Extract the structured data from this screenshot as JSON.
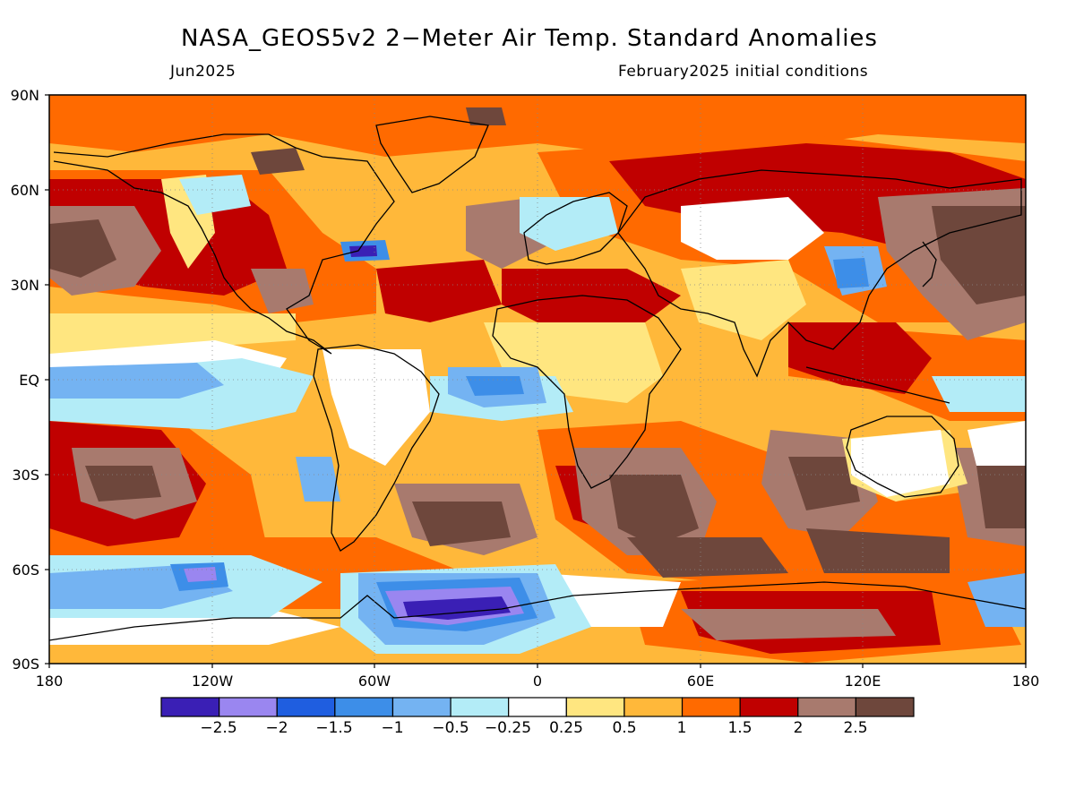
{
  "title": "NASA_GEOS5v2 2−Meter Air Temp. Standard Anomalies",
  "subtitle_left": "Jun2025",
  "subtitle_right": "February2025 initial conditions",
  "y_axis_labels": [
    "90N",
    "60N",
    "30N",
    "EQ",
    "30S",
    "60S",
    "90S"
  ],
  "x_axis_labels": [
    "180",
    "120W",
    "60W",
    "0",
    "60E",
    "120E",
    "180"
  ],
  "colorbar": {
    "colors": [
      "#3a1fb5",
      "#9a86f0",
      "#1f5ee0",
      "#3d8ee8",
      "#74b3f2",
      "#b3ecf7",
      "#ffffff",
      "#ffe680",
      "#ffb83a",
      "#ff6a00",
      "#c00000",
      "#a87a6e",
      "#6e473c"
    ],
    "labels": [
      "−2.5",
      "−2",
      "−1.5",
      "−1",
      "−0.5",
      "−0.25",
      "0.25",
      "0.5",
      "1",
      "1.5",
      "2",
      "2.5"
    ]
  },
  "palette": {
    "base": "#ffb83a",
    "orange": "#ff6a00",
    "red": "#c00000",
    "brown_light": "#a87a6e",
    "brown_dark": "#6e473c",
    "yellow": "#ffe680",
    "white": "#ffffff",
    "cyan": "#b3ecf7",
    "blue_light": "#74b3f2",
    "blue": "#3d8ee8",
    "blue_dark": "#1f5ee0",
    "purple_light": "#9a86f0",
    "purple": "#3a1fb5"
  }
}
